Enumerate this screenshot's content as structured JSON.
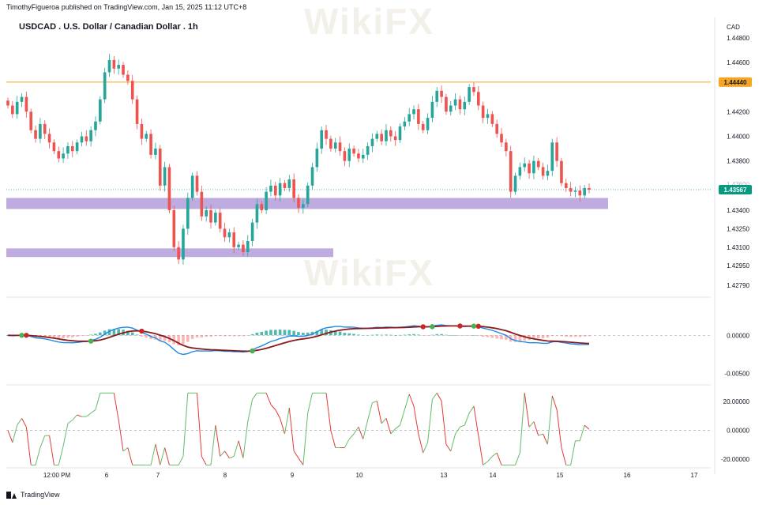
{
  "header": {
    "publisher_line": "TimothyFigueroa published on TradingView.com, Jan 15, 2025 11:12 UTC+8",
    "title": "USDCAD . U.S. Dollar / Canadian Dollar . 1h",
    "currency": "CAD"
  },
  "watermark": "WikiFX",
  "footer": {
    "brand": "TradingView"
  },
  "colors": {
    "up": "#26a69a",
    "down": "#ef5350",
    "resistance_line": "#f5a623",
    "zone": "#b39ddb",
    "macd_line": "#1e88e5",
    "signal_line": "#8b1a1a",
    "cross_green": "#4caf50",
    "cross_red": "#c62828",
    "osc_up": "#66bb6a",
    "osc_down": "#e53935",
    "price_badge": "#089981"
  },
  "price_axis": {
    "ticks": [
      "1.44800",
      "1.44600",
      "1.44200",
      "1.44000",
      "1.43800",
      "1.43400",
      "1.43250",
      "1.43100",
      "1.42950",
      "1.42790"
    ],
    "badge_resistance": "1.44440",
    "badge_last": "1.43567",
    "hidden_tick": "1.43600"
  },
  "macd_axis": {
    "ticks": [
      "0.00000",
      "-0.00500"
    ]
  },
  "osc_axis": {
    "ticks": [
      "20.00000",
      "0.00000",
      "-20.00000"
    ]
  },
  "time_axis": {
    "ticks": [
      "12:00 PM",
      "6",
      "7",
      "8",
      "9",
      "10",
      "13",
      "14",
      "15",
      "16",
      "17"
    ]
  },
  "chart_data": [
    {
      "type": "candlestick",
      "title": "USDCAD . U.S. Dollar / Canadian Dollar . 1h",
      "ylim": [
        1.4272,
        1.4485
      ],
      "resistance_level": 1.4444,
      "last_price": 1.43567,
      "support_zones": [
        [
          1.4341,
          1.435
        ],
        [
          1.4302,
          1.4309
        ]
      ],
      "closes": [
        1.4425,
        1.4418,
        1.4428,
        1.4432,
        1.442,
        1.4405,
        1.4398,
        1.441,
        1.4402,
        1.4395,
        1.4388,
        1.4382,
        1.4386,
        1.4392,
        1.4388,
        1.4395,
        1.44,
        1.4396,
        1.4405,
        1.4412,
        1.443,
        1.4452,
        1.4462,
        1.4455,
        1.4458,
        1.445,
        1.4445,
        1.443,
        1.441,
        1.4398,
        1.4402,
        1.4385,
        1.439,
        1.436,
        1.4375,
        1.434,
        1.431,
        1.43,
        1.4325,
        1.435,
        1.4368,
        1.4355,
        1.4335,
        1.434,
        1.433,
        1.4338,
        1.4325,
        1.4318,
        1.4322,
        1.431,
        1.4312,
        1.4306,
        1.4315,
        1.433,
        1.4345,
        1.434,
        1.4355,
        1.436,
        1.4352,
        1.4362,
        1.4358,
        1.4365,
        1.435,
        1.4342,
        1.4345,
        1.436,
        1.4375,
        1.439,
        1.4405,
        1.4398,
        1.439,
        1.4395,
        1.4388,
        1.438,
        1.439,
        1.4386,
        1.4382,
        1.4385,
        1.4392,
        1.4398,
        1.4402,
        1.4396,
        1.4405,
        1.44,
        1.4397,
        1.4408,
        1.4412,
        1.4418,
        1.4422,
        1.441,
        1.4405,
        1.4415,
        1.4428,
        1.4437,
        1.4432,
        1.442,
        1.4425,
        1.443,
        1.4422,
        1.4428,
        1.444,
        1.4436,
        1.4425,
        1.4415,
        1.4418,
        1.441,
        1.4402,
        1.4395,
        1.4388,
        1.4355,
        1.4368,
        1.4375,
        1.4378,
        1.437,
        1.438,
        1.4375,
        1.4368,
        1.4372,
        1.4395,
        1.438,
        1.4362,
        1.4358,
        1.4355,
        1.4356,
        1.4352,
        1.4358,
        1.43567
      ]
    },
    {
      "type": "line",
      "name_hidden": true,
      "ylim": [
        -0.0062,
        0.0048
      ],
      "ticks": [
        0.0,
        -0.005
      ]
    },
    {
      "type": "line",
      "ylim": [
        -26,
        30
      ],
      "ticks": [
        20,
        0,
        -20
      ]
    }
  ]
}
